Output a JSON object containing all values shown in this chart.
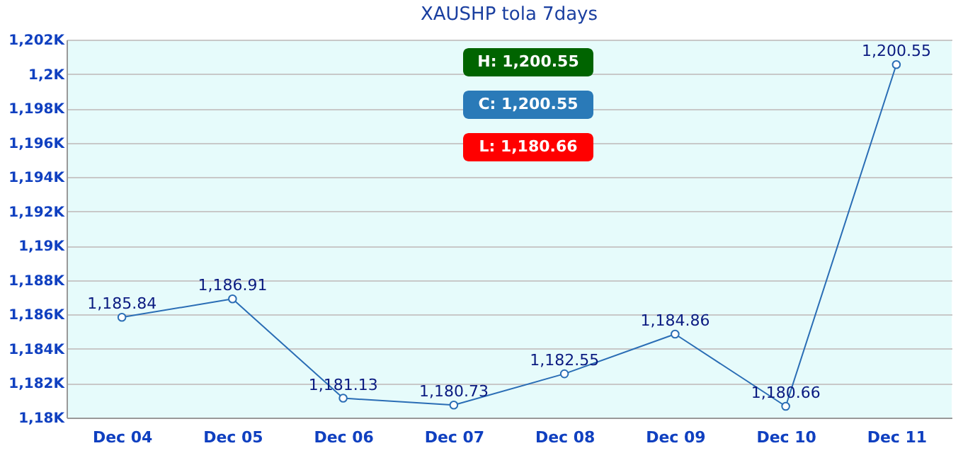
{
  "chart_data": {
    "type": "line",
    "title": "XAUSHP tola  7days",
    "categories": [
      "Dec 04",
      "Dec 05",
      "Dec 06",
      "Dec 07",
      "Dec 08",
      "Dec 09",
      "Dec 10",
      "Dec 11"
    ],
    "values": [
      1185.84,
      1186.91,
      1181.13,
      1180.73,
      1182.55,
      1184.86,
      1180.66,
      1200.55
    ],
    "value_labels": [
      "1,185.84",
      "1,186.91",
      "1,181.13",
      "1,180.73",
      "1,182.55",
      "1,184.86",
      "1,180.66",
      "1,200.55"
    ],
    "color": "#2a6db5",
    "marker": "circle",
    "grid": "y",
    "ylim": [
      1180,
      1202
    ],
    "yticks": [
      {
        "value": 1180,
        "label": "1,18K"
      },
      {
        "value": 1182,
        "label": "1,182K"
      },
      {
        "value": 1184,
        "label": "1,184K"
      },
      {
        "value": 1186,
        "label": "1,186K"
      },
      {
        "value": 1188,
        "label": "1,188K"
      },
      {
        "value": 1190,
        "label": "1,19K"
      },
      {
        "value": 1192,
        "label": "1,192K"
      },
      {
        "value": 1194,
        "label": "1,194K"
      },
      {
        "value": 1196,
        "label": "1,196K"
      },
      {
        "value": 1198,
        "label": "1,198K"
      },
      {
        "value": 1200,
        "label": "1,2K"
      },
      {
        "value": 1202,
        "label": "1,202K"
      }
    ],
    "annotations": [
      "H: 1,200.55",
      "C: 1,200.55",
      "L: 1,180.66"
    ]
  }
}
